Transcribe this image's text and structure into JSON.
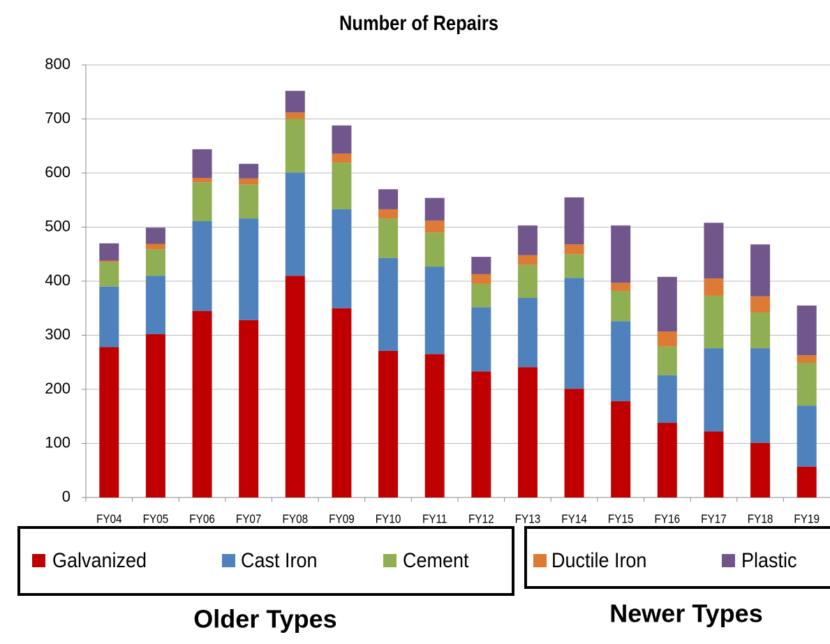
{
  "chart_data": {
    "type": "stacked_bar",
    "title": "Number of Repairs",
    "categories": [
      "FY04",
      "FY05",
      "FY06",
      "FY07",
      "FY08",
      "FY09",
      "FY10",
      "FY11",
      "FY12",
      "FY13",
      "FY14",
      "FY15",
      "FY16",
      "FY17",
      "FY18",
      "FY19"
    ],
    "series": [
      {
        "name": "Galvanized",
        "color": "#c00000",
        "values": [
          278,
          302,
          345,
          328,
          410,
          350,
          271,
          265,
          233,
          241,
          201,
          178,
          138,
          122,
          101,
          57
        ]
      },
      {
        "name": "Cast Iron",
        "color": "#4f81bd",
        "values": [
          112,
          108,
          166,
          188,
          191,
          183,
          172,
          162,
          119,
          128,
          205,
          148,
          88,
          154,
          175,
          113
        ]
      },
      {
        "name": "Cement",
        "color": "#8faf52",
        "values": [
          45,
          49,
          72,
          63,
          99,
          86,
          73,
          63,
          43,
          61,
          44,
          56,
          53,
          97,
          66,
          79
        ]
      },
      {
        "name": "Ductile Iron",
        "color": "#dd7b34",
        "values": [
          3,
          10,
          8,
          11,
          12,
          17,
          17,
          22,
          18,
          18,
          18,
          15,
          28,
          32,
          30,
          14
        ]
      },
      {
        "name": "Plastic",
        "color": "#71568c",
        "values": [
          32,
          30,
          53,
          27,
          40,
          52,
          37,
          42,
          32,
          55,
          87,
          106,
          101,
          103,
          96,
          92
        ]
      }
    ],
    "ylim": [
      0,
      800
    ],
    "yticks": [
      0,
      100,
      200,
      300,
      400,
      500,
      600,
      700,
      800
    ],
    "grid": true,
    "annotations": [
      "Older Types",
      "Newer Types"
    ]
  }
}
